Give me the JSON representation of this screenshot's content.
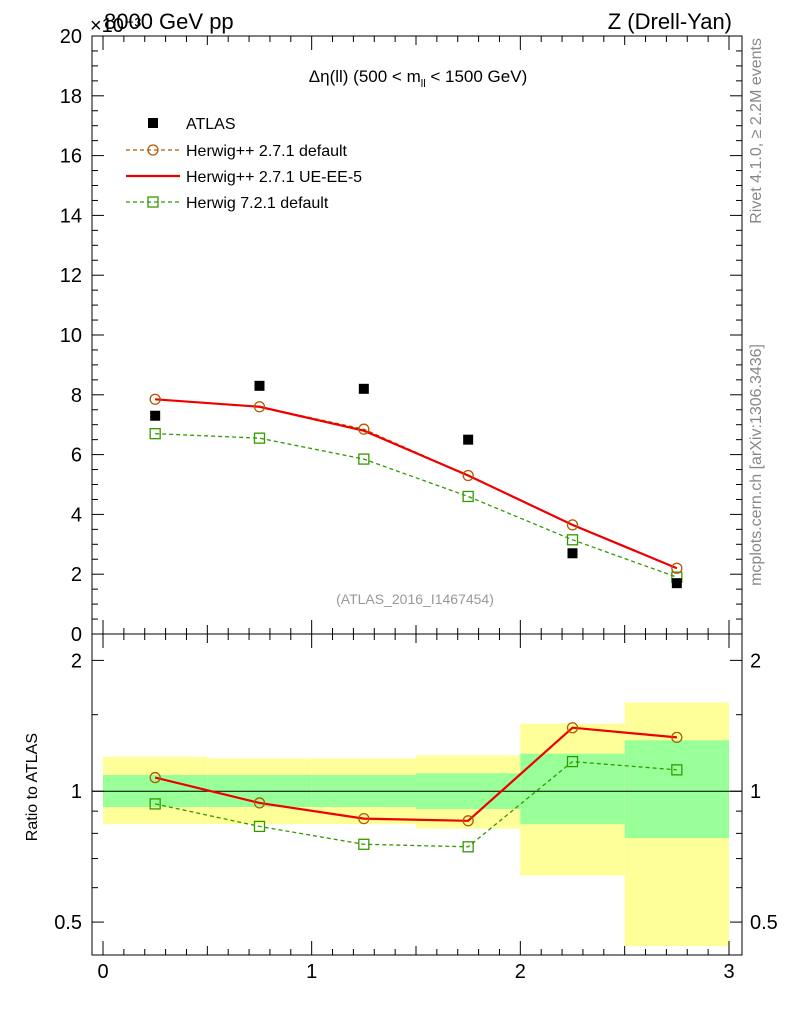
{
  "header": {
    "energy_label": "8000 GeV pp",
    "exponent_label": "×10⁻³",
    "process_label": "Z (Drell-Yan)"
  },
  "side_labels": {
    "rivet": "Rivet 4.1.0, ≥ 2.2M events",
    "mcplots": "mcplots.cern.ch [arXiv:1306.3436]"
  },
  "colors": {
    "atlas": "#000000",
    "herwigpp_default": "#b35900",
    "herwigpp_ueee5": "#ee0000",
    "herwig7_default": "#339900",
    "band_stat": "#99ff99",
    "band_total": "#ffff99"
  },
  "chart_data": [
    {
      "type": "line",
      "title_prefix": "Δη(ll) (500 < m",
      "title_sub": "ll",
      "title_suffix": " < 1500 GeV)",
      "analysis_label": "(ATLAS_2016_I1467454)",
      "xlabel": "",
      "ylabel": "",
      "xlim": [
        0,
        3
      ],
      "ylim": [
        0,
        20
      ],
      "y_scale_note": "×10⁻³",
      "y_ticks": [
        "0",
        "2",
        "4",
        "6",
        "8",
        "10",
        "12",
        "14",
        "16",
        "18",
        "20"
      ],
      "x": [
        0.25,
        0.75,
        1.25,
        1.75,
        2.25,
        2.75
      ],
      "series": [
        {
          "name": "ATLAS",
          "style": "data",
          "values": [
            7.3,
            8.3,
            8.2,
            6.5,
            2.7,
            1.7
          ]
        },
        {
          "name": "Herwig++ 2.7.1 default",
          "style": "open-circle-dashed",
          "values": [
            7.85,
            7.6,
            6.85,
            5.3,
            3.65,
            2.2
          ]
        },
        {
          "name": "Herwig++ 2.7.1 UE-EE-5",
          "style": "solid",
          "values": [
            7.85,
            7.6,
            6.8,
            5.3,
            3.65,
            2.2
          ]
        },
        {
          "name": "Herwig 7.2.1 default",
          "style": "open-square-dashed",
          "values": [
            6.7,
            6.55,
            5.85,
            4.6,
            3.15,
            1.9
          ]
        }
      ],
      "legend_position": "top-left"
    },
    {
      "type": "line",
      "ylabel": "Ratio to ATLAS",
      "xlim": [
        0,
        3
      ],
      "ylim": [
        0.42,
        2.3
      ],
      "y_scale": "log",
      "y_ticks": [
        "0.5",
        "1",
        "2"
      ],
      "x_ticks": [
        "0",
        "1",
        "2",
        "3"
      ],
      "bin_edges": [
        0,
        0.5,
        1,
        1.5,
        2,
        2.5,
        3
      ],
      "band_stat": [
        [
          0.92,
          1.09
        ],
        [
          0.92,
          1.09
        ],
        [
          0.92,
          1.09
        ],
        [
          0.91,
          1.1
        ],
        [
          0.84,
          1.22
        ],
        [
          0.78,
          1.31
        ]
      ],
      "band_total": [
        [
          0.84,
          1.2
        ],
        [
          0.84,
          1.19
        ],
        [
          0.84,
          1.19
        ],
        [
          0.82,
          1.21
        ],
        [
          0.64,
          1.43
        ],
        [
          0.44,
          1.6
        ]
      ],
      "x": [
        0.25,
        0.75,
        1.25,
        1.75,
        2.25,
        2.75
      ],
      "series": [
        {
          "name": "Herwig++ 2.7.1 default",
          "values": [
            1.075,
            0.94,
            0.865,
            0.855,
            1.4,
            1.33
          ]
        },
        {
          "name": "Herwig++ 2.7.1 UE-EE-5",
          "values": [
            1.075,
            0.94,
            0.865,
            0.855,
            1.4,
            1.33
          ]
        },
        {
          "name": "Herwig 7.2.1 default",
          "values": [
            0.935,
            0.83,
            0.755,
            0.745,
            1.17,
            1.12
          ]
        }
      ]
    }
  ]
}
